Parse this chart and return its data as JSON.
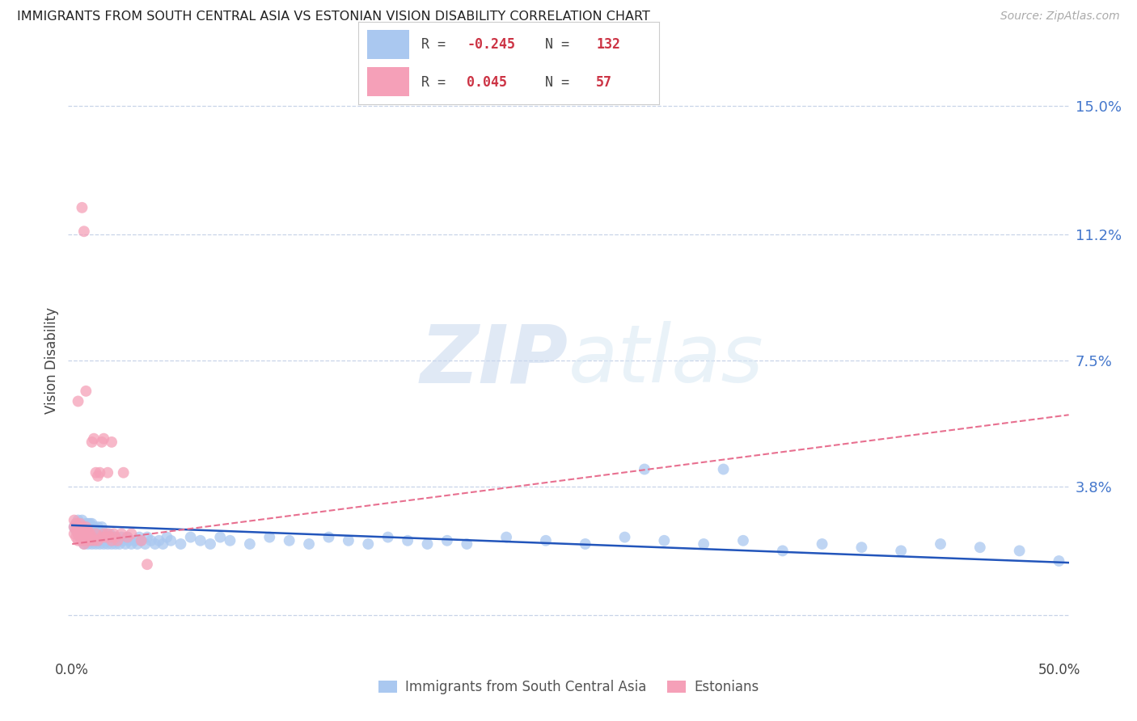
{
  "title": "IMMIGRANTS FROM SOUTH CENTRAL ASIA VS ESTONIAN VISION DISABILITY CORRELATION CHART",
  "source": "Source: ZipAtlas.com",
  "ylabel": "Vision Disability",
  "yticks": [
    0.0,
    0.038,
    0.075,
    0.112,
    0.15
  ],
  "ytick_labels": [
    "",
    "3.8%",
    "7.5%",
    "11.2%",
    "15.0%"
  ],
  "xlim": [
    -0.002,
    0.505
  ],
  "ylim": [
    -0.012,
    0.162
  ],
  "legend_r1": "R = ",
  "legend_v1": "-0.245",
  "legend_n1_label": "N = ",
  "legend_n1": "132",
  "legend_r2": "R = ",
  "legend_v2": "0.045",
  "legend_n2_label": "N = ",
  "legend_n2": "57",
  "watermark_zip": "ZIP",
  "watermark_atlas": "atlas",
  "blue_color": "#aac8f0",
  "pink_color": "#f5a0b8",
  "blue_line_color": "#2255bb",
  "pink_line_color": "#e87090",
  "blue_scatter_x": [
    0.001,
    0.002,
    0.002,
    0.003,
    0.003,
    0.003,
    0.004,
    0.004,
    0.004,
    0.005,
    0.005,
    0.005,
    0.005,
    0.006,
    0.006,
    0.006,
    0.007,
    0.007,
    0.007,
    0.007,
    0.008,
    0.008,
    0.008,
    0.008,
    0.009,
    0.009,
    0.009,
    0.009,
    0.01,
    0.01,
    0.01,
    0.01,
    0.011,
    0.011,
    0.011,
    0.012,
    0.012,
    0.012,
    0.013,
    0.013,
    0.013,
    0.014,
    0.014,
    0.015,
    0.015,
    0.015,
    0.016,
    0.016,
    0.017,
    0.017,
    0.018,
    0.018,
    0.019,
    0.019,
    0.02,
    0.02,
    0.021,
    0.022,
    0.022,
    0.023,
    0.024,
    0.025,
    0.026,
    0.027,
    0.028,
    0.029,
    0.03,
    0.032,
    0.033,
    0.034,
    0.035,
    0.037,
    0.038,
    0.04,
    0.042,
    0.044,
    0.046,
    0.048,
    0.05,
    0.055,
    0.06,
    0.065,
    0.07,
    0.075,
    0.08,
    0.09,
    0.1,
    0.11,
    0.12,
    0.13,
    0.14,
    0.15,
    0.16,
    0.17,
    0.18,
    0.19,
    0.2,
    0.22,
    0.24,
    0.26,
    0.28,
    0.3,
    0.32,
    0.34,
    0.36,
    0.38,
    0.4,
    0.42,
    0.44,
    0.46,
    0.48,
    0.5,
    0.29,
    0.33
  ],
  "blue_scatter_y": [
    0.026,
    0.025,
    0.027,
    0.024,
    0.026,
    0.028,
    0.023,
    0.025,
    0.027,
    0.022,
    0.024,
    0.026,
    0.028,
    0.021,
    0.023,
    0.025,
    0.022,
    0.024,
    0.026,
    0.027,
    0.021,
    0.023,
    0.025,
    0.027,
    0.022,
    0.024,
    0.026,
    0.027,
    0.021,
    0.023,
    0.025,
    0.027,
    0.022,
    0.024,
    0.026,
    0.021,
    0.023,
    0.025,
    0.022,
    0.024,
    0.026,
    0.021,
    0.023,
    0.022,
    0.024,
    0.026,
    0.021,
    0.023,
    0.022,
    0.024,
    0.021,
    0.023,
    0.022,
    0.024,
    0.021,
    0.023,
    0.022,
    0.021,
    0.023,
    0.022,
    0.021,
    0.023,
    0.022,
    0.021,
    0.023,
    0.022,
    0.021,
    0.022,
    0.021,
    0.023,
    0.022,
    0.021,
    0.023,
    0.022,
    0.021,
    0.022,
    0.021,
    0.023,
    0.022,
    0.021,
    0.023,
    0.022,
    0.021,
    0.023,
    0.022,
    0.021,
    0.023,
    0.022,
    0.021,
    0.023,
    0.022,
    0.021,
    0.023,
    0.022,
    0.021,
    0.022,
    0.021,
    0.023,
    0.022,
    0.021,
    0.023,
    0.022,
    0.021,
    0.022,
    0.019,
    0.021,
    0.02,
    0.019,
    0.021,
    0.02,
    0.019,
    0.016,
    0.043,
    0.043
  ],
  "pink_scatter_x": [
    0.001,
    0.001,
    0.001,
    0.002,
    0.002,
    0.002,
    0.003,
    0.003,
    0.003,
    0.004,
    0.004,
    0.004,
    0.005,
    0.005,
    0.005,
    0.006,
    0.006,
    0.006,
    0.007,
    0.007,
    0.007,
    0.008,
    0.008,
    0.009,
    0.009,
    0.01,
    0.01,
    0.011,
    0.011,
    0.012,
    0.012,
    0.013,
    0.013,
    0.014,
    0.015,
    0.015,
    0.016,
    0.016,
    0.017,
    0.018,
    0.018,
    0.019,
    0.02,
    0.02,
    0.021,
    0.022,
    0.023,
    0.025,
    0.026,
    0.028,
    0.03,
    0.035,
    0.038,
    0.005,
    0.006,
    0.007,
    0.003
  ],
  "pink_scatter_y": [
    0.024,
    0.026,
    0.028,
    0.023,
    0.025,
    0.027,
    0.022,
    0.024,
    0.026,
    0.023,
    0.025,
    0.027,
    0.022,
    0.024,
    0.026,
    0.021,
    0.023,
    0.025,
    0.022,
    0.024,
    0.026,
    0.023,
    0.025,
    0.022,
    0.024,
    0.023,
    0.051,
    0.022,
    0.052,
    0.024,
    0.042,
    0.022,
    0.041,
    0.042,
    0.023,
    0.051,
    0.024,
    0.052,
    0.023,
    0.042,
    0.024,
    0.023,
    0.022,
    0.051,
    0.024,
    0.023,
    0.022,
    0.024,
    0.042,
    0.023,
    0.024,
    0.022,
    0.015,
    0.12,
    0.113,
    0.066,
    0.063
  ],
  "blue_trend_x": [
    0.0,
    0.505
  ],
  "blue_trend_y": [
    0.0265,
    0.0155
  ],
  "pink_trend_x": [
    0.0,
    0.505
  ],
  "pink_trend_y": [
    0.021,
    0.059
  ]
}
